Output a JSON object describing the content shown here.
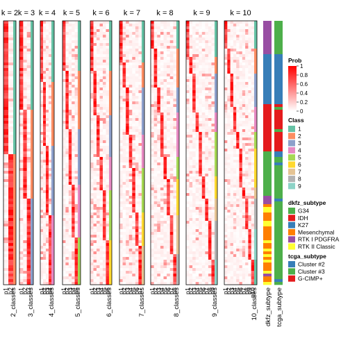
{
  "chart_data": {
    "type": "heatmap",
    "panels": [
      {
        "title": "k = 2",
        "class_label": "2_classes",
        "col_labels": [
          "p1",
          "p2"
        ]
      },
      {
        "title": "k = 3",
        "class_label": "3_classes",
        "col_labels": [
          "p1",
          "p2",
          "p3"
        ]
      },
      {
        "title": "k = 4",
        "class_label": "4_classes",
        "col_labels": [
          "p1",
          "p2",
          "p3",
          "p4"
        ]
      },
      {
        "title": "k = 5",
        "class_label": "5_classes",
        "col_labels": [
          "p1",
          "p2",
          "p3",
          "p4",
          "p5"
        ]
      },
      {
        "title": "k = 6",
        "class_label": "6_classes",
        "col_labels": [
          "p1",
          "p2",
          "p3",
          "p4",
          "p5",
          "p6"
        ]
      },
      {
        "title": "k = 7",
        "class_label": "7_classes",
        "col_labels": [
          "p1",
          "p2",
          "p3",
          "p4",
          "p5",
          "p6",
          "p7"
        ]
      },
      {
        "title": "k = 8",
        "class_label": "8_classes",
        "col_labels": [
          "p1",
          "p2",
          "p3",
          "p4",
          "p5",
          "p6",
          "p7",
          "p8"
        ]
      },
      {
        "title": "k = 9",
        "class_label": "9_classes",
        "col_labels": [
          "p1",
          "p2",
          "p3",
          "p4",
          "p5",
          "p6",
          "p7",
          "p8",
          "p9"
        ]
      },
      {
        "title": "k = 10",
        "class_label": "10_classes",
        "col_labels": [
          "p1",
          "p2",
          "p3",
          "p4",
          "p5",
          "p6",
          "p7",
          "p8",
          "p9",
          "p10"
        ]
      }
    ],
    "annotation_columns": [
      "dkfz_subtype",
      "tcga_subtype"
    ],
    "legends": {
      "prob": {
        "title": "Prob",
        "ticks": [
          "0",
          "0.2",
          "0.4",
          "0.6",
          "0.8",
          "1"
        ],
        "colors": [
          "#ffffff",
          "#ff0000"
        ]
      },
      "class": {
        "title": "Class",
        "entries": [
          {
            "label": "1",
            "color": "#66c2a5"
          },
          {
            "label": "2",
            "color": "#fc8d62"
          },
          {
            "label": "3",
            "color": "#8da0cb"
          },
          {
            "label": "4",
            "color": "#e78ac3"
          },
          {
            "label": "5",
            "color": "#a6d854"
          },
          {
            "label": "6",
            "color": "#ffd92f"
          },
          {
            "label": "7",
            "color": "#e5c494"
          },
          {
            "label": "8",
            "color": "#b3b3b3"
          },
          {
            "label": "9",
            "color": "#8dd3c7"
          }
        ]
      },
      "dkfz_subtype": {
        "title": "dkfz_subtype",
        "entries": [
          {
            "label": "G34",
            "color": "#4daf4a"
          },
          {
            "label": "IDH",
            "color": "#e41a1c"
          },
          {
            "label": "K27",
            "color": "#377eb8"
          },
          {
            "label": "Mesenchymal",
            "color": "#ff7f00"
          },
          {
            "label": "RTK I PDGFRA",
            "color": "#984ea3"
          },
          {
            "label": "RTK II Classic",
            "color": "#ffff33"
          }
        ]
      },
      "tcga_subtype": {
        "title": "tcga_subtype",
        "entries": [
          {
            "label": "Cluster #2",
            "color": "#377eb8"
          },
          {
            "label": "Cluster #3",
            "color": "#4daf4a"
          },
          {
            "label": "G-CIMP+",
            "color": "#e41a1c"
          }
        ]
      }
    }
  }
}
